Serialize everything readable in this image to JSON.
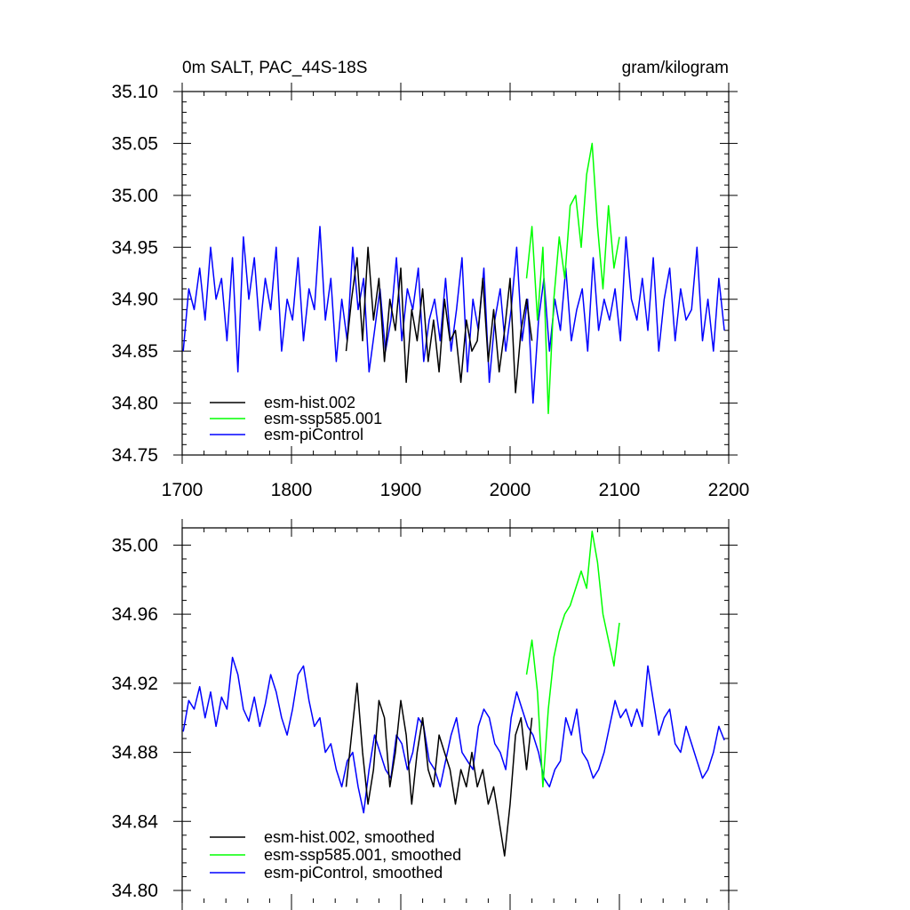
{
  "chart_data": [
    {
      "type": "line",
      "title_left": "0m SALT, PAC_44S-18S",
      "title_right": "gram/kilogram",
      "xlabel": "",
      "ylabel": "",
      "xlim": [
        1700,
        2200
      ],
      "ylim": [
        34.75,
        35.1
      ],
      "xticks": [
        1700,
        1800,
        1900,
        2000,
        2100,
        2200
      ],
      "xtick_labels": [
        "1700",
        "1800",
        "1900",
        "2000",
        "2100",
        "2200"
      ],
      "yticks": [
        34.75,
        34.8,
        34.85,
        34.9,
        34.95,
        35.0,
        35.05,
        35.1
      ],
      "ytick_labels": [
        "34.75",
        "34.80",
        "34.85",
        "34.90",
        "34.95",
        "35.00",
        "35.05",
        "35.10"
      ],
      "series": [
        {
          "name": "esm-piControl",
          "color": "#0000ff",
          "x_start": 1701,
          "x_step": 5,
          "values": [
            34.85,
            34.91,
            34.89,
            34.93,
            34.88,
            34.95,
            34.9,
            34.92,
            34.86,
            34.94,
            34.83,
            34.96,
            34.9,
            34.94,
            34.87,
            34.92,
            34.89,
            34.95,
            34.85,
            34.9,
            34.88,
            34.94,
            34.86,
            34.91,
            34.89,
            34.97,
            34.88,
            34.92,
            34.84,
            34.9,
            34.86,
            34.95,
            34.89,
            34.92,
            34.83,
            34.87,
            34.91,
            34.85,
            34.88,
            34.94,
            34.86,
            34.91,
            34.89,
            34.93,
            34.84,
            34.88,
            34.9,
            34.86,
            34.92,
            34.85,
            34.89,
            34.94,
            34.83,
            34.9,
            34.87,
            34.93,
            34.82,
            34.88,
            34.91,
            34.85,
            34.89,
            34.95,
            34.86,
            34.9,
            34.8,
            34.88,
            34.92,
            34.85,
            34.9,
            34.87,
            34.93,
            34.86,
            34.89,
            34.91,
            34.85,
            34.94,
            34.87,
            34.9,
            34.88,
            34.91,
            34.86,
            34.96,
            34.9,
            34.88,
            34.92,
            34.87,
            34.94,
            34.85,
            34.9,
            34.93,
            34.86,
            34.91,
            34.88,
            34.89,
            34.95,
            34.86,
            34.9,
            34.85,
            34.92,
            34.87
          ]
        },
        {
          "name": "esm-hist.002",
          "color": "#000000",
          "x_start": 1850,
          "x_step": 5,
          "values": [
            34.85,
            34.9,
            34.94,
            34.86,
            34.95,
            34.88,
            34.92,
            34.84,
            34.9,
            34.87,
            34.93,
            34.82,
            34.89,
            34.86,
            34.91,
            34.84,
            34.88,
            34.83,
            34.9,
            34.86,
            34.87,
            34.82,
            34.88,
            34.85,
            34.86,
            34.92,
            34.84,
            34.89,
            34.83,
            34.87,
            34.92,
            34.81,
            34.87,
            34.9,
            34.86
          ]
        },
        {
          "name": "esm-ssp585.001",
          "color": "#00ff00",
          "x_start": 2015,
          "x_step": 5,
          "values": [
            34.92,
            34.97,
            34.88,
            34.95,
            34.79,
            34.9,
            34.96,
            34.92,
            34.99,
            35.0,
            34.95,
            35.02,
            35.05,
            34.97,
            34.91,
            34.99,
            34.93,
            34.96
          ]
        }
      ]
    },
    {
      "type": "line",
      "title_left": "",
      "title_right": "",
      "xlabel": "",
      "ylabel": "",
      "xlim": [
        1700,
        2200
      ],
      "ylim": [
        34.8,
        35.01
      ],
      "yticks": [
        34.8,
        34.84,
        34.88,
        34.92,
        34.96,
        35.0
      ],
      "ytick_labels": [
        "34.80",
        "34.84",
        "34.88",
        "34.92",
        "34.96",
        "35.00"
      ],
      "series": [
        {
          "name": "esm-piControl, smoothed",
          "color": "#0000ff",
          "x_start": 1701,
          "x_step": 5,
          "values": [
            34.892,
            34.91,
            34.905,
            34.918,
            34.9,
            34.915,
            34.895,
            34.912,
            34.905,
            34.935,
            34.925,
            34.905,
            34.898,
            34.912,
            34.895,
            34.908,
            34.925,
            34.915,
            34.9,
            34.89,
            34.905,
            34.925,
            34.93,
            34.91,
            34.895,
            34.9,
            34.88,
            34.885,
            34.87,
            34.86,
            34.875,
            34.88,
            34.86,
            34.845,
            34.87,
            34.89,
            34.88,
            34.87,
            34.865,
            34.89,
            34.885,
            34.87,
            34.88,
            34.9,
            34.895,
            34.875,
            34.87,
            34.86,
            34.875,
            34.89,
            34.9,
            34.88,
            34.875,
            34.87,
            34.895,
            34.905,
            34.9,
            34.885,
            34.88,
            34.87,
            34.9,
            34.915,
            34.905,
            34.895,
            34.89,
            34.88,
            34.865,
            34.86,
            34.87,
            34.875,
            34.9,
            34.89,
            34.905,
            34.88,
            34.875,
            34.865,
            34.87,
            34.88,
            34.895,
            34.91,
            34.9,
            34.905,
            34.895,
            34.905,
            34.895,
            34.93,
            34.91,
            34.89,
            34.9,
            34.905,
            34.885,
            34.88,
            34.895,
            34.885,
            34.875,
            34.865,
            34.87,
            34.88,
            34.895,
            34.887
          ]
        },
        {
          "name": "esm-hist.002, smoothed",
          "color": "#000000",
          "x_start": 1850,
          "x_step": 5,
          "values": [
            34.86,
            34.89,
            34.92,
            34.88,
            34.85,
            34.87,
            34.91,
            34.9,
            34.86,
            34.88,
            34.91,
            34.89,
            34.85,
            34.88,
            34.9,
            34.87,
            34.86,
            34.89,
            34.88,
            34.87,
            34.85,
            34.87,
            34.86,
            34.88,
            34.86,
            34.87,
            34.85,
            34.86,
            34.84,
            34.82,
            34.85,
            34.89,
            34.9,
            34.87,
            34.9
          ]
        },
        {
          "name": "esm-ssp585.001, smoothed",
          "color": "#00ff00",
          "x_start": 2015,
          "x_step": 5,
          "values": [
            34.925,
            34.945,
            34.915,
            34.86,
            34.905,
            34.935,
            34.95,
            34.96,
            34.965,
            34.975,
            34.985,
            34.975,
            35.008,
            34.99,
            34.96,
            34.945,
            34.93,
            34.955
          ]
        }
      ]
    }
  ]
}
